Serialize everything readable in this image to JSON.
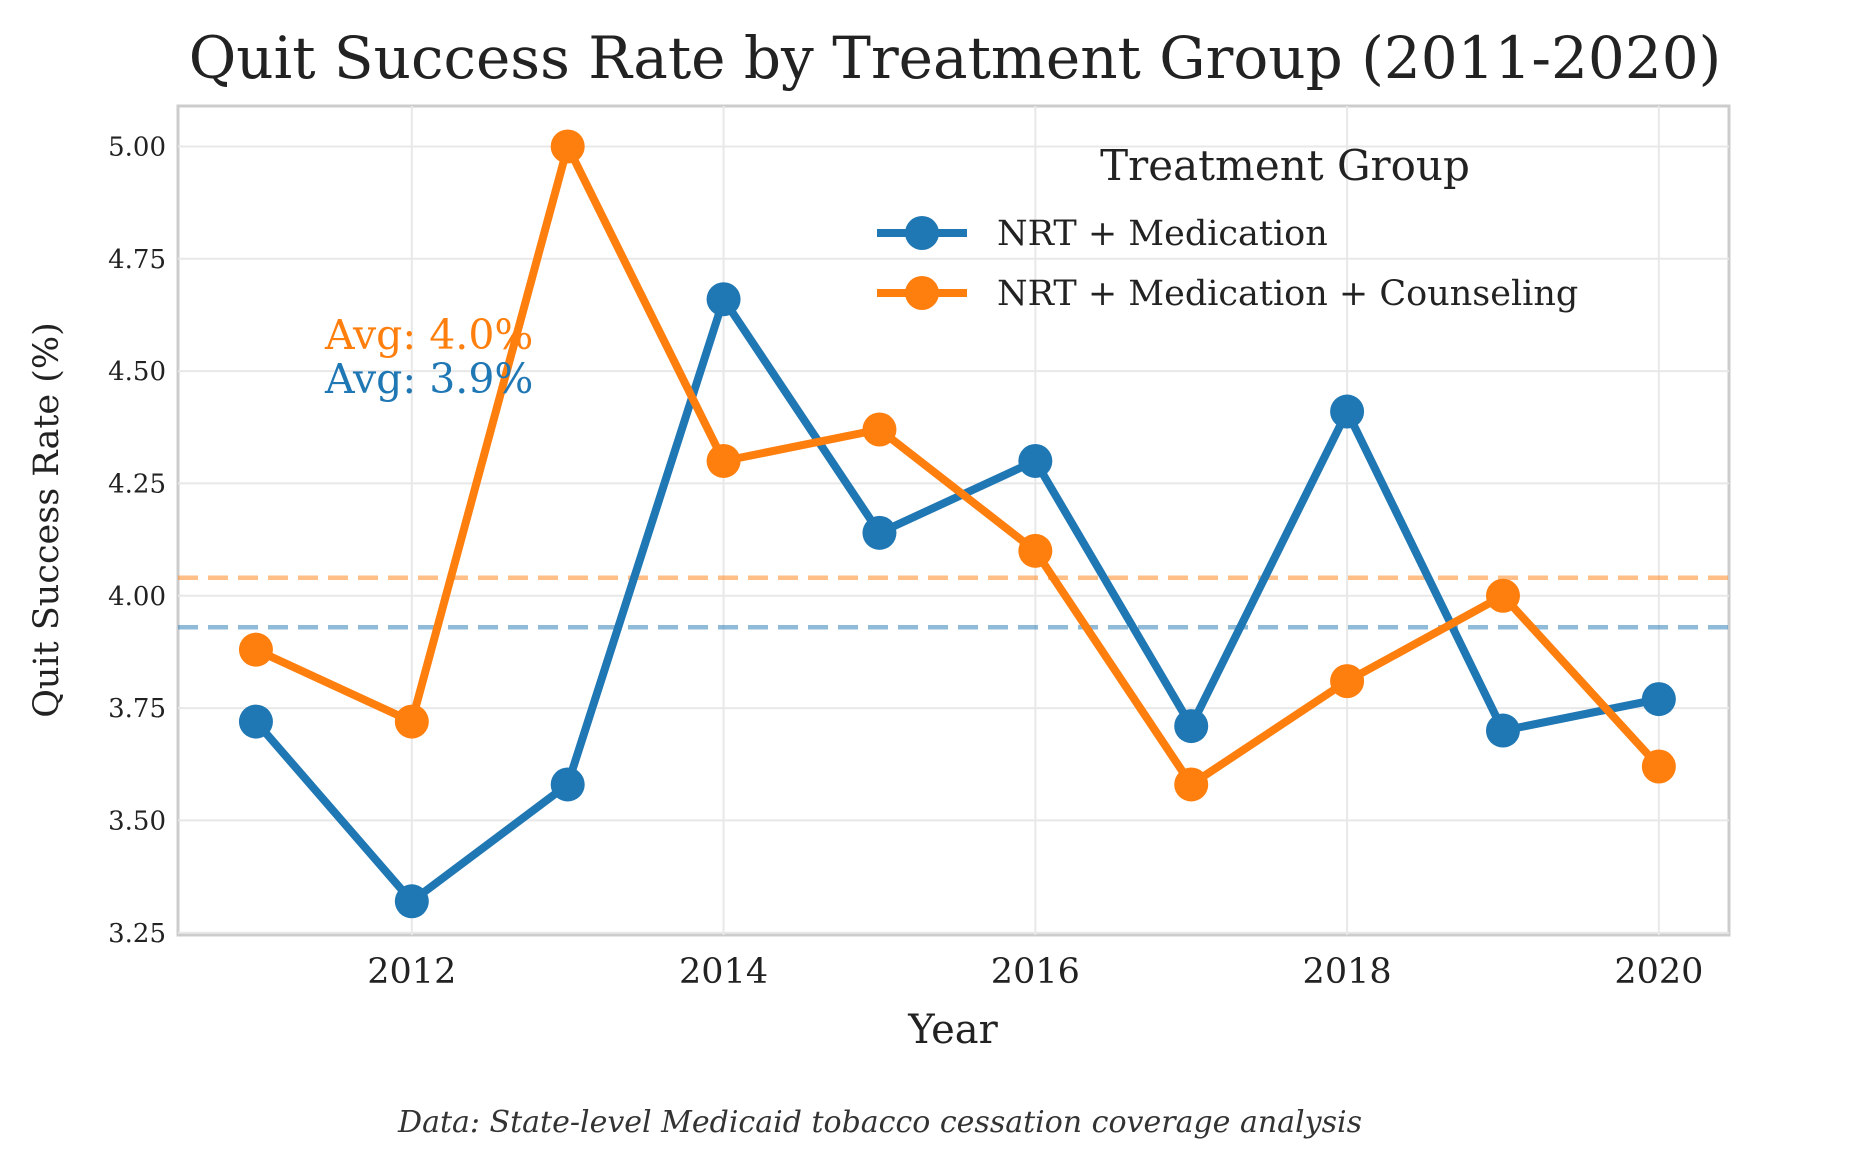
{
  "chart_data": {
    "type": "line",
    "title": "Quit Success Rate by Treatment Group (2011-2020)",
    "xlabel": "Year",
    "ylabel": "Quit Success Rate (%)",
    "x": [
      2011,
      2012,
      2013,
      2014,
      2015,
      2016,
      2017,
      2018,
      2019,
      2020
    ],
    "xlim": [
      2010.5,
      2020.45
    ],
    "ylim": [
      3.245,
      5.09
    ],
    "x_ticks": [
      2012,
      2014,
      2016,
      2018,
      2020
    ],
    "x_tick_labels": [
      "2012",
      "2014",
      "2016",
      "2018",
      "2020"
    ],
    "y_ticks": [
      3.25,
      3.5,
      3.75,
      4.0,
      4.25,
      4.5,
      4.75,
      5.0
    ],
    "y_tick_labels": [
      "3.25",
      "3.50",
      "3.75",
      "4.00",
      "4.25",
      "4.50",
      "4.75",
      "5.00"
    ],
    "grid": true,
    "legend": {
      "title": "Treatment Group",
      "placement": "upper-right"
    },
    "series": [
      {
        "name": "NRT + Medication",
        "color": "#1f77b4",
        "values": [
          3.72,
          3.32,
          3.58,
          4.66,
          4.14,
          4.3,
          3.71,
          4.41,
          3.7,
          3.77
        ],
        "average": 3.93,
        "avg_label": "Avg: 3.9%"
      },
      {
        "name": "NRT + Medication + Counseling",
        "color": "#ff7f0e",
        "values": [
          3.88,
          3.72,
          5.0,
          4.3,
          4.37,
          4.1,
          3.58,
          3.81,
          4.0,
          3.62
        ],
        "average": 4.04,
        "avg_label": "Avg: 4.0%"
      }
    ],
    "caption": "Data: State-level Medicaid tobacco cessation coverage analysis"
  }
}
